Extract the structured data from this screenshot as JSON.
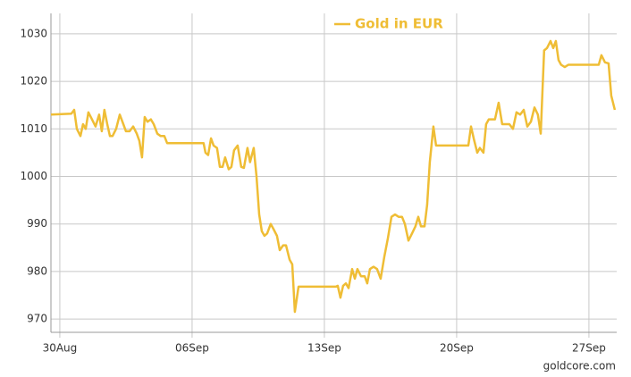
{
  "chart_data": {
    "type": "line",
    "source": "goldcore.com",
    "x": [
      -0.47,
      0.61,
      0.76,
      0.9,
      1.09,
      1.23,
      1.37,
      1.51,
      1.7,
      1.89,
      2.08,
      2.22,
      2.36,
      2.51,
      2.65,
      2.79,
      2.98,
      3.17,
      3.36,
      3.5,
      3.69,
      3.88,
      4.07,
      4.21,
      4.35,
      4.49,
      4.64,
      4.82,
      4.97,
      5.16,
      5.34,
      5.53,
      5.68,
      6.29,
      7.0,
      7.61,
      7.71,
      7.85,
      8.0,
      8.14,
      8.32,
      8.47,
      8.61,
      8.75,
      8.94,
      9.08,
      9.22,
      9.41,
      9.6,
      9.74,
      9.93,
      10.07,
      10.26,
      10.41,
      10.55,
      10.69,
      10.83,
      10.97,
      11.16,
      11.3,
      11.49,
      11.64,
      11.82,
      11.97,
      12.16,
      12.3,
      12.44,
      12.63,
      12.91,
      13.86,
      14.61,
      14.71,
      14.85,
      14.99,
      15.14,
      15.28,
      15.47,
      15.61,
      15.75,
      15.94,
      16.13,
      16.27,
      16.41,
      16.6,
      16.79,
      16.98,
      17.17,
      17.36,
      17.55,
      17.74,
      17.93,
      18.11,
      18.26,
      18.45,
      18.64,
      18.82,
      18.97,
      19.11,
      19.3,
      19.44,
      19.58,
      19.77,
      19.91,
      20.48,
      21.0,
      21.62,
      21.76,
      21.9,
      22.09,
      22.23,
      22.42,
      22.56,
      22.7,
      23.03,
      23.22,
      23.41,
      23.6,
      23.79,
      23.98,
      24.17,
      24.36,
      24.55,
      24.74,
      24.93,
      25.12,
      25.3,
      25.45,
      25.63,
      25.78,
      25.97,
      26.11,
      26.25,
      26.39,
      26.53,
      26.72,
      26.91,
      28.05,
      28.52,
      28.66,
      28.85,
      29.04,
      29.18,
      29.37
    ],
    "series": [
      {
        "name": "Gold in EUR",
        "color": "#efbd35",
        "values": [
          1013,
          1013.2,
          1014,
          1010,
          1008.5,
          1011,
          1010,
          1013.5,
          1012,
          1010.5,
          1013,
          1009.5,
          1014,
          1011,
          1008.5,
          1008.5,
          1010,
          1013,
          1011,
          1009.5,
          1009.5,
          1010.5,
          1009,
          1007.5,
          1004,
          1012.5,
          1011.5,
          1012,
          1011,
          1009,
          1008.5,
          1008.5,
          1007,
          1007,
          1007,
          1007,
          1005,
          1004.5,
          1008,
          1006.5,
          1006,
          1002,
          1002,
          1004,
          1001.5,
          1002,
          1005.5,
          1006.5,
          1002,
          1001.8,
          1006,
          1003,
          1006,
          1000,
          992,
          988.5,
          987.5,
          988,
          990,
          989,
          987.5,
          984.5,
          985.5,
          985.5,
          982.5,
          981.5,
          971.5,
          976.8,
          976.8,
          976.8,
          976.8,
          977,
          974.5,
          977,
          977.5,
          976.5,
          980.5,
          978.5,
          980.5,
          979,
          979,
          977.5,
          980.5,
          981,
          980.5,
          978.5,
          983,
          987,
          991.5,
          992,
          991.5,
          991.5,
          990,
          986.5,
          988,
          989.5,
          991.5,
          989.5,
          989.5,
          994,
          1003,
          1010.5,
          1006.5,
          1006.5,
          1006.5,
          1006.5,
          1010.5,
          1008,
          1005,
          1006,
          1005,
          1011,
          1012,
          1012,
          1015.5,
          1011,
          1011,
          1011,
          1010,
          1013.5,
          1013,
          1014,
          1010.5,
          1011.5,
          1014.5,
          1013,
          1009,
          1026.5,
          1027,
          1028.5,
          1027,
          1028.5,
          1024.5,
          1023.5,
          1023,
          1023.5,
          1023.5,
          1023.5,
          1025.5,
          1024,
          1023.8,
          1017,
          1014
        ]
      }
    ],
    "xlim": [
      -0.47,
      29.47
    ],
    "xticks": [
      {
        "value": 0,
        "label": "30Aug"
      },
      {
        "value": 7,
        "label": "06Sep"
      },
      {
        "value": 14,
        "label": "13Sep"
      },
      {
        "value": 21,
        "label": "20Sep"
      },
      {
        "value": 28,
        "label": "27Sep"
      }
    ],
    "ylim": [
      967.2,
      1034.3
    ],
    "yticks": [
      970,
      980,
      990,
      1000,
      1010,
      1020,
      1030
    ],
    "grid": true,
    "legend": "top"
  }
}
